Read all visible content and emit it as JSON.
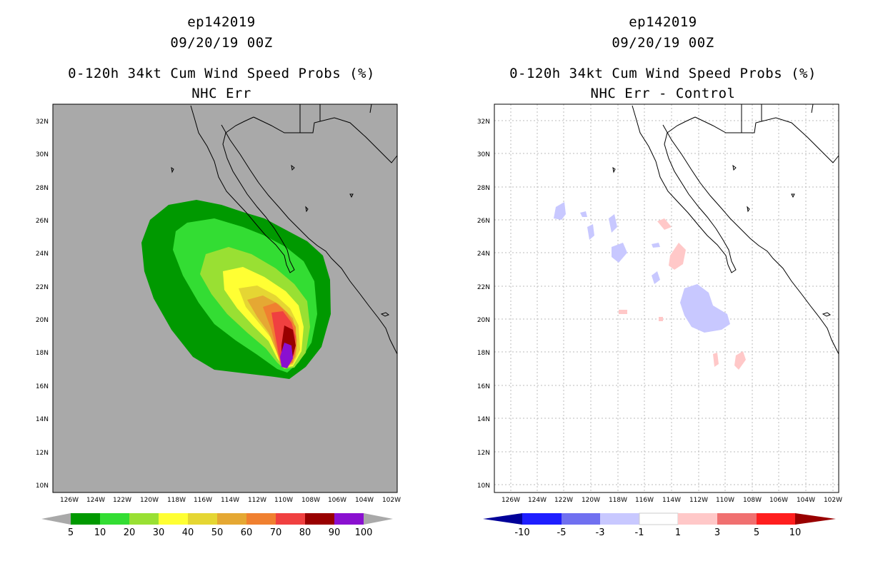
{
  "left_panel": {
    "storm_id": "ep142019",
    "datetime": "09/20/19 00Z",
    "product": "0-120h 34kt Cum Wind Speed Probs (%)",
    "subtitle": "NHC Err",
    "background_color": "#a9a9a9",
    "colorbar": {
      "colors": [
        "#009900",
        "#33dd33",
        "#99e033",
        "#ffff33",
        "#e5d633",
        "#e5a833",
        "#f08030",
        "#f04040",
        "#990000",
        "#8a10d0"
      ],
      "labels": [
        "5",
        "10",
        "20",
        "30",
        "40",
        "50",
        "60",
        "70",
        "80",
        "90",
        "100"
      ]
    }
  },
  "right_panel": {
    "storm_id": "ep142019",
    "datetime": "09/20/19 00Z",
    "product": "0-120h 34kt Cum Wind Speed Probs (%)",
    "subtitle": "NHC Err - Control",
    "background_color": "#ffffff",
    "colorbar": {
      "colors": [
        "#000099",
        "#1e1eff",
        "#7070f0",
        "#c8c8ff",
        "#ffffff",
        "#ffc8c8",
        "#f07070",
        "#ff1e1e",
        "#990000"
      ],
      "labels": [
        "-10",
        "-5",
        "-3",
        "-1",
        "1",
        "3",
        "5",
        "10"
      ]
    }
  },
  "axes": {
    "lat_labels": [
      "32N",
      "30N",
      "28N",
      "26N",
      "24N",
      "22N",
      "20N",
      "18N",
      "16N",
      "14N",
      "12N",
      "10N"
    ],
    "lon_labels": [
      "126W",
      "124W",
      "122W",
      "120W",
      "118W",
      "116W",
      "114W",
      "112W",
      "110W",
      "108W",
      "106W",
      "104W",
      "102W"
    ]
  }
}
